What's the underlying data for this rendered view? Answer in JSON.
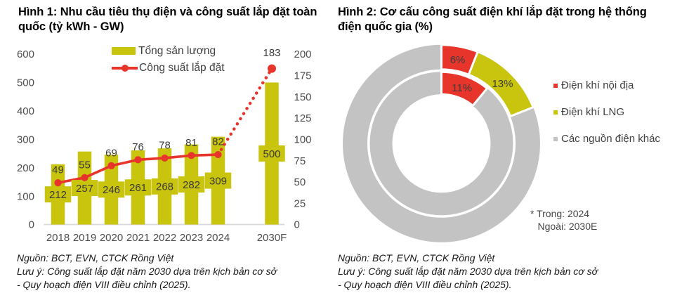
{
  "colors": {
    "bar_yellow": "#c9c40e",
    "line_red": "#e8352b",
    "donut_red": "#e8352b",
    "donut_yellow": "#c9c40e",
    "donut_gray": "#c3c3c3",
    "axis_text": "#4d4d4d",
    "value_text": "#3a3a3a",
    "baseline": "#d9d9d9",
    "legend_text": "#404040"
  },
  "figure1": {
    "title": "Hình 1: Nhu cầu tiêu thụ điện và công suất lắp đặt toàn quốc (tỷ kWh - GW)",
    "legend": {
      "bars": "Tổng sản lượng",
      "line": "Công suất lắp đặt"
    },
    "chart_data": {
      "type": "bar",
      "subtype": "bar+line combo",
      "categories": [
        "2018",
        "2019",
        "2020",
        "2021",
        "2022",
        "2023",
        "2024",
        "2030F"
      ],
      "series": [
        {
          "name": "Tổng sản lượng",
          "type": "bar",
          "axis": "left",
          "unit": "tỷ kWh",
          "values": [
            212,
            257,
            246,
            261,
            268,
            282,
            309,
            500
          ]
        },
        {
          "name": "Công suất lắp đặt",
          "type": "line",
          "axis": "right",
          "unit": "GW",
          "values": [
            49,
            55,
            69,
            76,
            78,
            81,
            82,
            183
          ],
          "dotted_from_category": "2024"
        }
      ],
      "left_axis": {
        "range": [
          0,
          600
        ],
        "ticks": [
          0,
          100,
          200,
          300,
          400,
          500,
          600
        ]
      },
      "right_axis": {
        "range": [
          0,
          200
        ],
        "ticks": [
          0,
          25,
          50,
          75,
          100,
          125,
          150,
          175,
          200
        ]
      },
      "grid": false,
      "legend_position": "top-center"
    },
    "notes": [
      "Nguồn: BCT, EVN, CTCK Rồng Việt",
      "Lưu ý: Công suất lắp đặt năm 2030 dựa trên kịch bản cơ sở",
      "- Quy hoạch điện VIII điều chỉnh (2025)."
    ]
  },
  "figure2": {
    "title": "Hình 2: Cơ cấu công suất điện khí lắp đặt trong hệ thống điện quốc gia (%)",
    "chart_data": {
      "type": "pie",
      "subtype": "double donut",
      "rings": [
        {
          "name": "Ngoài: 2030E",
          "position": "outer",
          "slices": [
            {
              "label": "Điện khí nội địa",
              "value": 6,
              "data_label": "6%",
              "color": "donut_red"
            },
            {
              "label": "Điện khí LNG",
              "value": 13,
              "data_label": "13%",
              "color": "donut_yellow"
            },
            {
              "label": "Các nguồn điện khác",
              "value": 81,
              "data_label": "",
              "color": "donut_gray"
            }
          ]
        },
        {
          "name": "Trong: 2024",
          "position": "inner",
          "slices": [
            {
              "label": "Điện khí nội địa",
              "value": 11,
              "data_label": "11%",
              "color": "donut_red"
            },
            {
              "label": "Các nguồn điện khác",
              "value": 89,
              "data_label": "",
              "color": "donut_gray"
            }
          ]
        }
      ],
      "legend_position": "right"
    },
    "legend": [
      {
        "label": "Điện khí nội địa",
        "color": "donut_red"
      },
      {
        "label": "Điện khí LNG",
        "color": "donut_yellow"
      },
      {
        "label": "Các nguồn điện khác",
        "color": "donut_gray"
      }
    ],
    "ring_note": [
      "* Trong: 2024",
      "Ngoài: 2030E"
    ],
    "notes": [
      "Nguồn: BCT, EVN, CTCK Rồng Việt",
      "Lưu ý: Công suất lắp đặt năm 2030 dựa trên kịch bản cơ sở",
      "- Quy hoạch điện VIII điều chỉnh (2025)."
    ]
  }
}
